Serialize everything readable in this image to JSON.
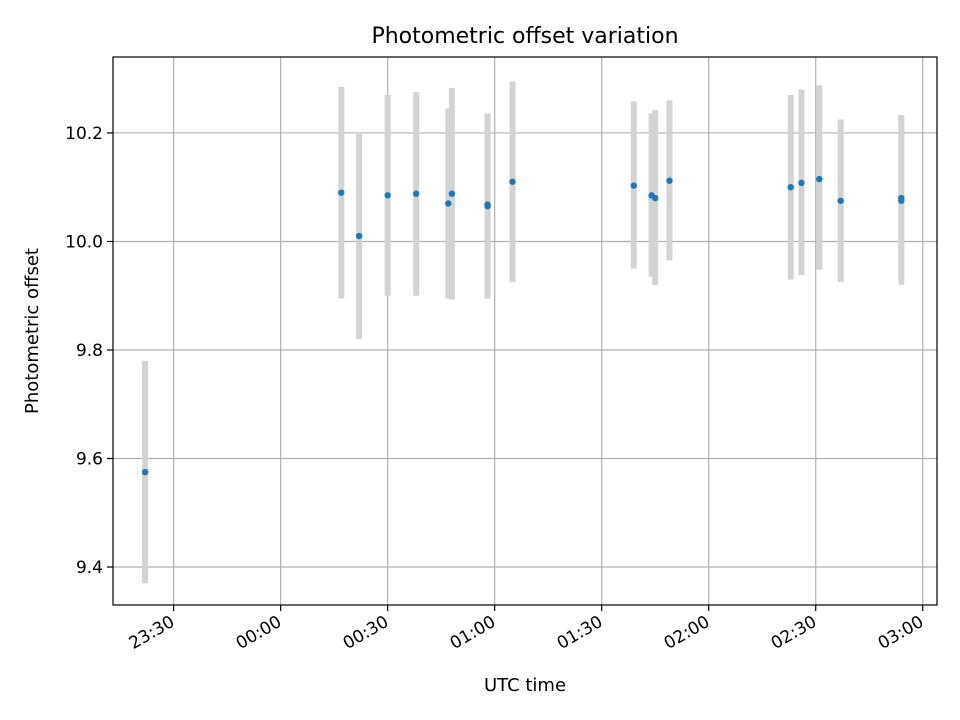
{
  "chart_data": {
    "type": "scatter",
    "title": "Photometric offset variation",
    "xlabel": "UTC time",
    "ylabel": "Photometric offset",
    "x_axis_kind": "time",
    "xlim": [
      "23:13",
      "03:04"
    ],
    "ylim": [
      9.33,
      10.34
    ],
    "x_ticks": [
      "23:30",
      "00:00",
      "00:30",
      "01:00",
      "01:30",
      "02:00",
      "02:30",
      "03:00"
    ],
    "y_ticks": [
      9.4,
      9.6,
      9.8,
      10.0,
      10.2
    ],
    "y_tick_labels": [
      "9.4",
      "9.6",
      "9.8",
      "10.0",
      "10.2"
    ],
    "grid": true,
    "colors": {
      "points": "#1f77b4",
      "errorbars": "#d3d3d3",
      "grid": "#b0b0b0"
    },
    "points": [
      {
        "x": "23:22",
        "y": 9.575,
        "ylow": 9.37,
        "yhigh": 9.78
      },
      {
        "x": "00:17",
        "y": 10.09,
        "ylow": 9.895,
        "yhigh": 10.285
      },
      {
        "x": "00:22",
        "y": 10.01,
        "ylow": 9.82,
        "yhigh": 10.2
      },
      {
        "x": "00:30",
        "y": 10.085,
        "ylow": 9.9,
        "yhigh": 10.27
      },
      {
        "x": "00:38",
        "y": 10.088,
        "ylow": 9.9,
        "yhigh": 10.275
      },
      {
        "x": "00:47",
        "y": 10.07,
        "ylow": 9.895,
        "yhigh": 10.245
      },
      {
        "x": "00:48",
        "y": 10.088,
        "ylow": 9.893,
        "yhigh": 10.283
      },
      {
        "x": "00:58",
        "y": 10.065,
        "ylow": 9.895,
        "yhigh": 10.235
      },
      {
        "x": "00:58",
        "y": 10.068,
        "ylow": 9.9,
        "yhigh": 10.236
      },
      {
        "x": "01:05",
        "y": 10.11,
        "ylow": 9.925,
        "yhigh": 10.295
      },
      {
        "x": "01:39",
        "y": 10.103,
        "ylow": 9.95,
        "yhigh": 10.258
      },
      {
        "x": "01:44",
        "y": 10.085,
        "ylow": 9.935,
        "yhigh": 10.236
      },
      {
        "x": "01:45",
        "y": 10.08,
        "ylow": 9.92,
        "yhigh": 10.242
      },
      {
        "x": "01:49",
        "y": 10.112,
        "ylow": 9.965,
        "yhigh": 10.26
      },
      {
        "x": "02:23",
        "y": 10.1,
        "ylow": 9.93,
        "yhigh": 10.27
      },
      {
        "x": "02:26",
        "y": 10.108,
        "ylow": 9.938,
        "yhigh": 10.28
      },
      {
        "x": "02:31",
        "y": 10.115,
        "ylow": 9.948,
        "yhigh": 10.288
      },
      {
        "x": "02:37",
        "y": 10.075,
        "ylow": 9.925,
        "yhigh": 10.225
      },
      {
        "x": "02:54",
        "y": 10.08,
        "ylow": 9.93,
        "yhigh": 10.233
      },
      {
        "x": "02:54",
        "y": 10.075,
        "ylow": 9.92,
        "yhigh": 10.232
      }
    ]
  }
}
